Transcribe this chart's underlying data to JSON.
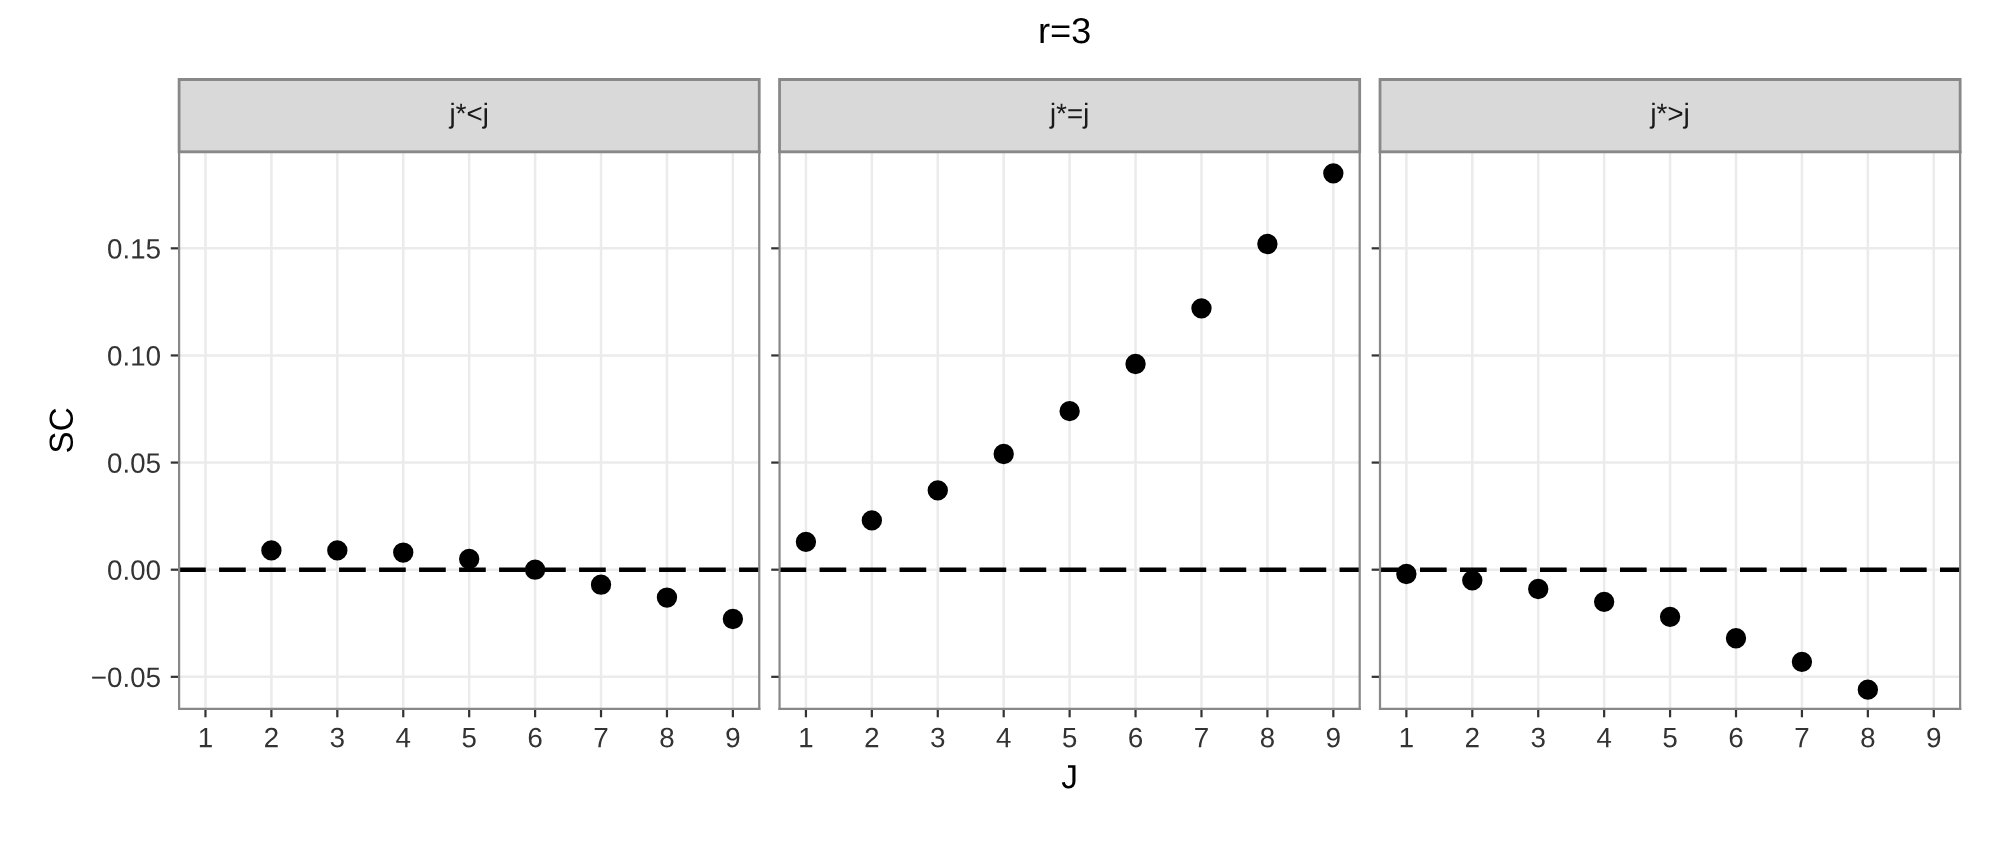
{
  "chart_data": [
    {
      "type": "scatter",
      "title": "j*<j",
      "ylabel": "SC",
      "annotations": [
        "r=3"
      ],
      "x": [
        2,
        3,
        4,
        5,
        6,
        7,
        8,
        9
      ],
      "values": [
        0.009,
        0.009,
        0.008,
        0.005,
        0.0,
        -0.007,
        -0.013,
        -0.023
      ],
      "color": "#000000",
      "marker": "circle",
      "xlim": [
        0.6,
        9.4
      ],
      "xticks": [
        1,
        2,
        3,
        4,
        5,
        6,
        7,
        8,
        9
      ],
      "ylim": [
        -0.065,
        0.195
      ],
      "yticks": [
        {
          "value": -0.05,
          "label": "−0.05"
        },
        {
          "value": 0.0,
          "label": "0.00"
        },
        {
          "value": 0.05,
          "label": "0.05"
        },
        {
          "value": 0.1,
          "label": "0.10"
        },
        {
          "value": 0.15,
          "label": "0.15"
        }
      ],
      "grid": true,
      "ref_lines": [
        {
          "axis": "y",
          "value": 0,
          "line_style": "dashed",
          "color": "#000000"
        }
      ]
    },
    {
      "type": "scatter",
      "title": "j*=j",
      "xlabel": "J",
      "x": [
        1,
        2,
        3,
        4,
        5,
        6,
        7,
        8,
        9
      ],
      "values": [
        0.013,
        0.023,
        0.037,
        0.054,
        0.074,
        0.096,
        0.122,
        0.152,
        0.185
      ],
      "color": "#000000",
      "marker": "circle",
      "xlim": [
        0.6,
        9.4
      ],
      "xticks": [
        1,
        2,
        3,
        4,
        5,
        6,
        7,
        8,
        9
      ],
      "ylim": [
        -0.065,
        0.195
      ],
      "yticks": [
        {
          "value": -0.05,
          "label": null
        },
        {
          "value": 0.0,
          "label": null
        },
        {
          "value": 0.05,
          "label": null
        },
        {
          "value": 0.1,
          "label": null
        },
        {
          "value": 0.15,
          "label": null
        }
      ],
      "tick_labels": "x",
      "grid": true,
      "ref_lines": [
        {
          "axis": "y",
          "value": 0,
          "line_style": "dashed",
          "color": "#000000"
        }
      ]
    },
    {
      "type": "scatter",
      "title": "j*>j",
      "x": [
        1,
        2,
        3,
        4,
        5,
        6,
        7,
        8
      ],
      "values": [
        -0.002,
        -0.005,
        -0.009,
        -0.015,
        -0.022,
        -0.032,
        -0.043,
        -0.056
      ],
      "color": "#000000",
      "marker": "circle",
      "xlim": [
        0.6,
        9.4
      ],
      "xticks": [
        1,
        2,
        3,
        4,
        5,
        6,
        7,
        8,
        9
      ],
      "ylim": [
        -0.065,
        0.195
      ],
      "yticks": [
        {
          "value": -0.05,
          "label": null
        },
        {
          "value": 0.0,
          "label": null
        },
        {
          "value": 0.05,
          "label": null
        },
        {
          "value": 0.1,
          "label": null
        },
        {
          "value": 0.15,
          "label": null
        }
      ],
      "tick_labels": "x",
      "grid": true,
      "ref_lines": [
        {
          "axis": "y",
          "value": 0,
          "line_style": "dashed",
          "color": "#000000"
        }
      ]
    }
  ]
}
